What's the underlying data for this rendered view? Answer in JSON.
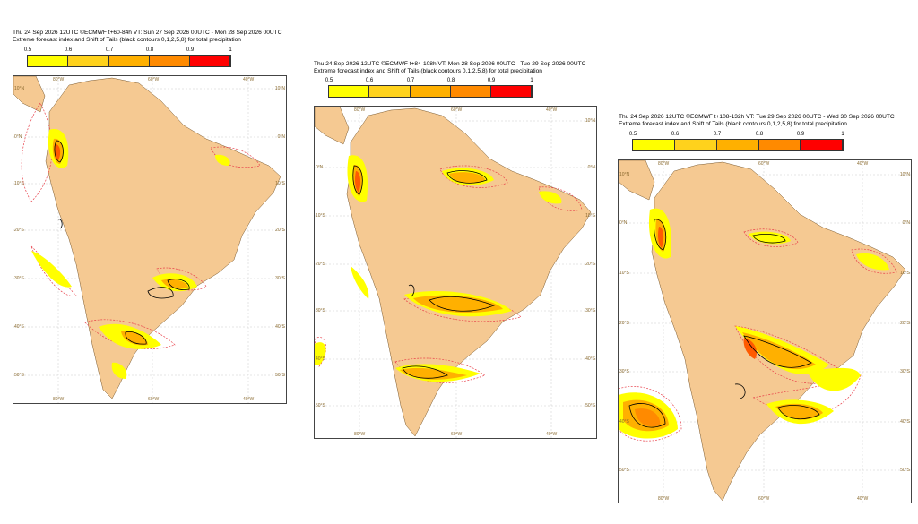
{
  "colors": {
    "land": "#f5c992",
    "ocean": "#ffffff",
    "bar": [
      "#ffff00",
      "#ffd21c",
      "#ffb000",
      "#ff8a00",
      "#ff5a00",
      "#ff0000"
    ],
    "contour_red": "#e8404a",
    "contour_black": "#000000"
  },
  "colorbar_ticks": [
    "0.5",
    "0.6",
    "0.7",
    "0.8",
    "0.9",
    "1"
  ],
  "panels": [
    {
      "line1": "Thu 24 Sep 2026 12UTC ©ECMWF t+60-84h  VT: Sun 27 Sep 2026 00UTC - Mon 28 Sep 2026 00UTC",
      "line2": "Extreme forecast index and Shift of Tails (black contours 0,1,2,5,8) for total precipitation",
      "lon_labels": [
        "80°W",
        "60°W",
        "40°W"
      ],
      "lat_labels_left": [
        "10°N",
        "0°N",
        "10°S",
        "20°S",
        "30°S",
        "40°S",
        "50°S"
      ],
      "lat_labels_right": [
        "10°N",
        "0°N",
        "10°S",
        "20°S",
        "30°S",
        "40°S",
        "50°S"
      ]
    },
    {
      "line1": "Thu 24 Sep 2026 12UTC ©ECMWF t+84-108h  VT: Mon 28 Sep 2026 00UTC - Tue 29 Sep 2026 00UTC",
      "line2": "Extreme forecast index and Shift of Tails (black contours 0,1,2,5,8) for total precipitation",
      "lon_labels": [
        "80°W",
        "60°W",
        "40°W"
      ],
      "lat_labels_left": [
        "0°N",
        "10°S",
        "20°S",
        "30°S",
        "40°S",
        "50°S"
      ],
      "lat_labels_right": [
        "10°N",
        "0°N",
        "10°S",
        "20°S",
        "30°S",
        "40°S",
        "50°S"
      ]
    },
    {
      "line1": "Thu 24 Sep 2026 12UTC ©ECMWF t+108-132h  VT: Tue 29 Sep 2026 00UTC - Wed 30 Sep 2026 00UTC",
      "line2": "Extreme forecast index and Shift of Tails (black contours 0,1,2,5,8) for total precipitation",
      "lon_labels": [
        "80°W",
        "60°W",
        "40°W"
      ],
      "lat_labels_left": [
        "10°N",
        "0°N",
        "10°S",
        "20°S",
        "30°S",
        "40°S",
        "50°S"
      ],
      "lat_labels_right": [
        "10°N",
        "0°N",
        "10°S",
        "20°S",
        "30°S",
        "40°S",
        "50°S"
      ]
    }
  ]
}
